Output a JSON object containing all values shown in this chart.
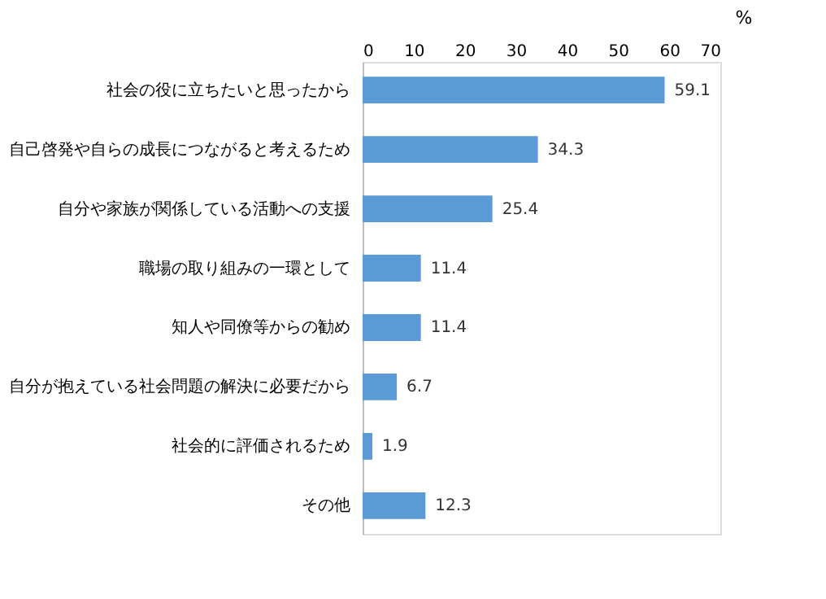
{
  "chart_data": {
    "type": "bar",
    "orientation": "horizontal",
    "xlabel": "%",
    "categories": [
      "社会の役に立ちたいと思ったから",
      "自己啓発や自らの成長につながると考えるため",
      "自分や家族が関係している活動への支援",
      "職場の取り組みの一環として",
      "知人や同僚等からの勧め",
      "自分が抱えている社会問題の解決に必要だから",
      "社会的に評価されるため",
      "その他"
    ],
    "values": [
      59.1,
      34.3,
      25.4,
      11.4,
      11.4,
      6.7,
      1.9,
      12.3
    ],
    "color": "#5b9bd5",
    "xlim": [
      0,
      70
    ],
    "xticks": [
      0,
      10,
      20,
      30,
      40,
      50,
      60,
      70
    ],
    "grid": false,
    "data_labels": true
  }
}
